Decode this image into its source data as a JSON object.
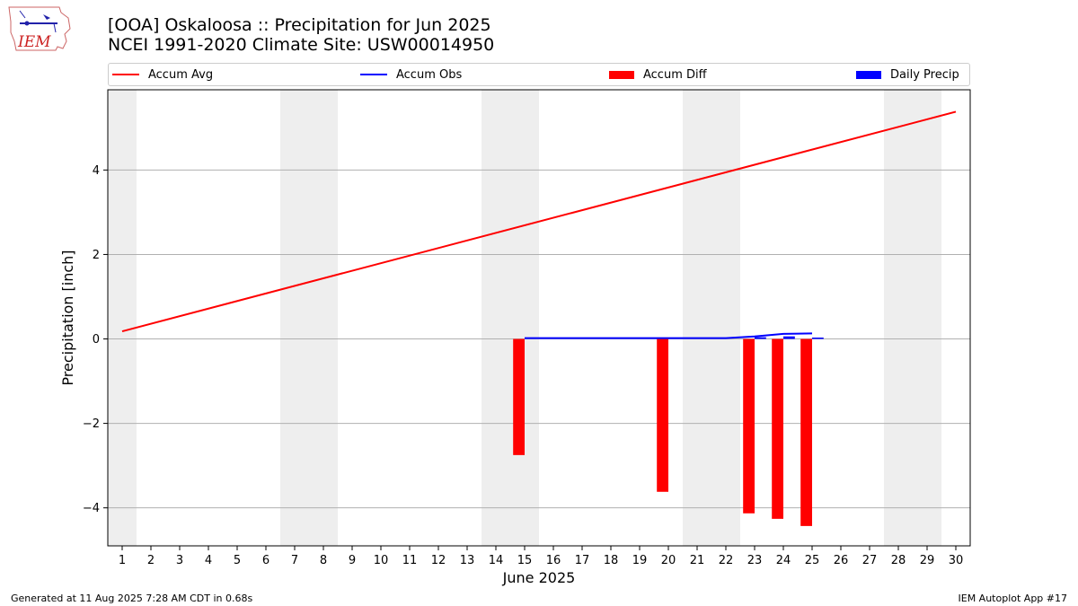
{
  "header": {
    "title_line1": "[OOA] Oskaloosa :: Precipitation for Jun 2025",
    "title_line2": "NCEI 1991-2020 Climate Site: USW00014950",
    "logo_text": "IEM"
  },
  "legend": {
    "items": [
      {
        "label": "Accum Avg",
        "kind": "line",
        "color": "#ff0000"
      },
      {
        "label": "Accum Obs",
        "kind": "line",
        "color": "#0000ff"
      },
      {
        "label": "Accum Diff",
        "kind": "patch",
        "color": "#ff0000"
      },
      {
        "label": "Daily Precip",
        "kind": "patch",
        "color": "#0000ff"
      }
    ]
  },
  "footer": {
    "generated": "Generated at 11 Aug 2025 7:28 AM CDT in 0.68s",
    "app": "IEM Autoplot App #17"
  },
  "chart_data": {
    "type": "bar",
    "title": "[OOA] Oskaloosa :: Precipitation for Jun 2025",
    "subtitle": "NCEI 1991-2020 Climate Site: USW00014950",
    "xlabel": "June 2025",
    "ylabel": "Precipitation [inch]",
    "xlim": [
      0.5,
      30.5
    ],
    "ylim": [
      -4.9,
      5.9
    ],
    "x_ticks": [
      1,
      2,
      3,
      4,
      5,
      6,
      7,
      8,
      9,
      10,
      11,
      12,
      13,
      14,
      15,
      16,
      17,
      18,
      19,
      20,
      21,
      22,
      23,
      24,
      25,
      26,
      27,
      28,
      29,
      30
    ],
    "y_ticks": [
      -4,
      -2,
      0,
      2,
      4
    ],
    "y_tick_labels": [
      "−4",
      "−2",
      "0",
      "2",
      "4"
    ],
    "grid": "horizontal",
    "legend_position": "top",
    "weekend_shading": [
      [
        0.5,
        1.5
      ],
      [
        6.5,
        8.5
      ],
      [
        13.5,
        15.5
      ],
      [
        20.5,
        22.5
      ],
      [
        27.5,
        29.5
      ]
    ],
    "shade_color": "#eeeeee",
    "accum_avg": {
      "name": "Accum Avg",
      "color": "#ff0000",
      "x": [
        1,
        30
      ],
      "values": [
        0.18,
        5.38
      ]
    },
    "accum_obs": {
      "name": "Accum Obs",
      "color": "#0000ff",
      "x": [
        15,
        16,
        17,
        18,
        19,
        20,
        21,
        22,
        23,
        24,
        25
      ],
      "values": [
        0.02,
        0.02,
        0.02,
        0.02,
        0.02,
        0.02,
        0.02,
        0.02,
        0.06,
        0.12,
        0.13
      ]
    },
    "accum_diff": {
      "name": "Accum Diff",
      "color": "#ff0000",
      "x": [
        15,
        20,
        23,
        24,
        25
      ],
      "values": [
        -2.75,
        -3.62,
        -4.13,
        -4.26,
        -4.43
      ]
    },
    "daily_precip": {
      "name": "Daily Precip",
      "color": "#0000ff",
      "x": [
        15,
        20,
        23,
        24,
        25
      ],
      "values": [
        0.02,
        0.01,
        0.04,
        0.06,
        0.01
      ]
    }
  }
}
